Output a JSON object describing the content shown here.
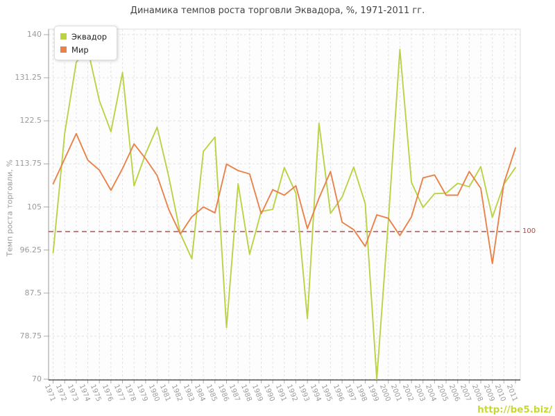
{
  "title": "Динамика темпов роста торговли Эквадора, %, 1971-2011 гг.",
  "watermark": "http://be5.biz/",
  "reference_line": {
    "value": 100,
    "label": "100",
    "color": "#a85757"
  },
  "chart_data": {
    "type": "line",
    "title": "Динамика темпов роста торговли Эквадора, %, 1971-2011 гг.",
    "xlabel": "",
    "ylabel": "Темп роста торговли, %",
    "ylim": [
      70,
      140
    ],
    "y_ticks": [
      140,
      131.25,
      122.5,
      113.75,
      105,
      96.25,
      87.5,
      78.75,
      70
    ],
    "grid": true,
    "legend_position": "top-left",
    "reference_line": 100,
    "categories": [
      "1971",
      "1972",
      "1973",
      "1974",
      "1975",
      "1976",
      "1977",
      "1978",
      "1979",
      "1980",
      "1981",
      "1982",
      "1983",
      "1984",
      "1985",
      "1986",
      "1987",
      "1988",
      "1989",
      "1990",
      "1991",
      "1992",
      "1993",
      "1994",
      "1995",
      "1996",
      "1997",
      "1998",
      "1999",
      "2000",
      "2001",
      "2002",
      "2003",
      "2004",
      "2005",
      "2006",
      "2007",
      "2008",
      "2009",
      "2010",
      "2011"
    ],
    "series": [
      {
        "name": "Эквадор",
        "color": "#b9d344",
        "values": [
          95.7,
          120,
          134.4,
          137,
          126.6,
          120.3,
          132.3,
          109.3,
          115.8,
          121.2,
          111.2,
          99.6,
          94.5,
          116.3,
          119.2,
          80.5,
          109.7,
          95.4,
          104.1,
          104.5,
          113,
          107.8,
          82.3,
          122,
          103.7,
          107,
          113.1,
          105.7,
          70,
          102,
          137,
          110,
          104.9,
          107.7,
          107.8,
          109.8,
          109.1,
          113.2,
          102.9,
          109.6,
          113
        ]
      },
      {
        "name": "Мир",
        "color": "#e8824a",
        "values": [
          109.7,
          114.8,
          119.9,
          114.5,
          112.5,
          108.4,
          112.8,
          117.8,
          114.8,
          111.4,
          104.5,
          99.5,
          103,
          105,
          103.8,
          113.7,
          112.4,
          111.7,
          103.6,
          108.5,
          107.4,
          109.3,
          100.6,
          106.8,
          112.2,
          101.9,
          100.4,
          97,
          103.4,
          102.7,
          99.2,
          103,
          110.9,
          111.5,
          107.4,
          107.4,
          112.2,
          108.8,
          93.5,
          109.8,
          117
        ]
      }
    ],
    "style": {
      "grid_color": "#e2e2e2",
      "axis_text_color": "#9a9a9a",
      "plot_background": "#fdfdfd",
      "watermark_color": "#c9d834"
    }
  }
}
